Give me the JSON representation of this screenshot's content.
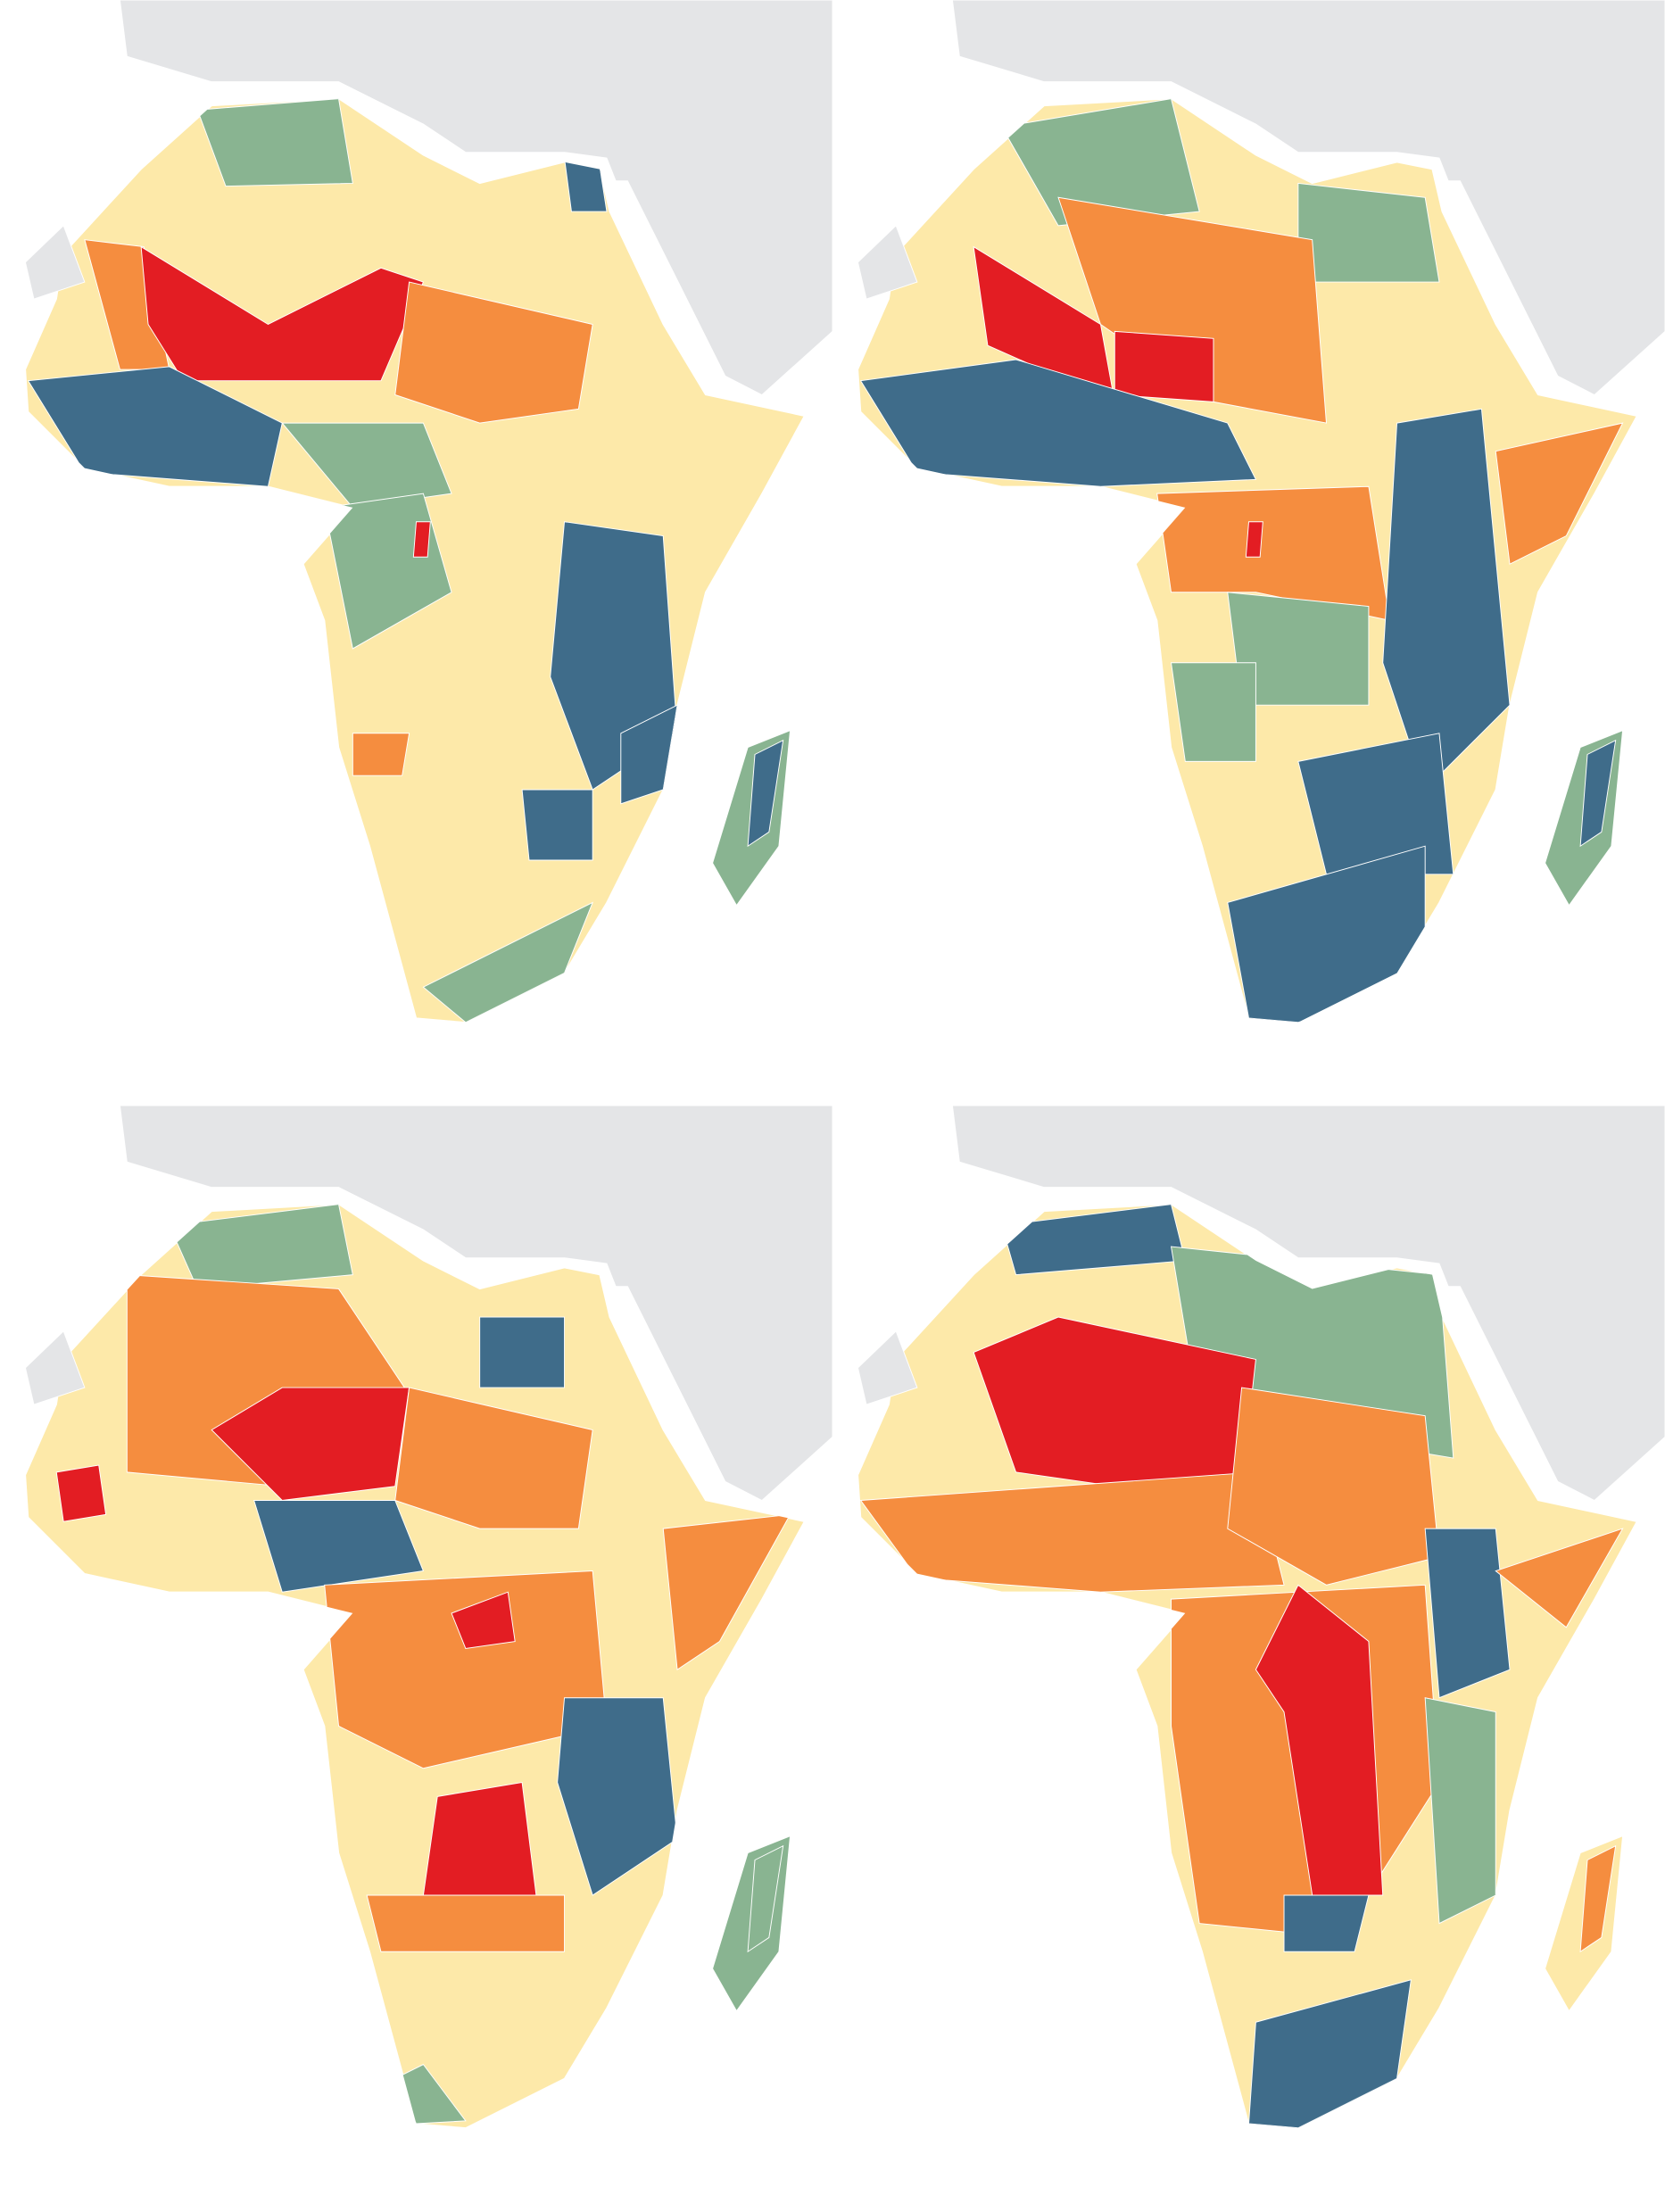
{
  "palette": {
    "red": "#e31d23",
    "orange": "#f58d3f",
    "yellow": "#fde9a9",
    "green": "#89b491",
    "blue": "#3f6c8a"
  },
  "land": "#e4e5e7",
  "sea": "#ffffff",
  "border": "#ffffff"
}
